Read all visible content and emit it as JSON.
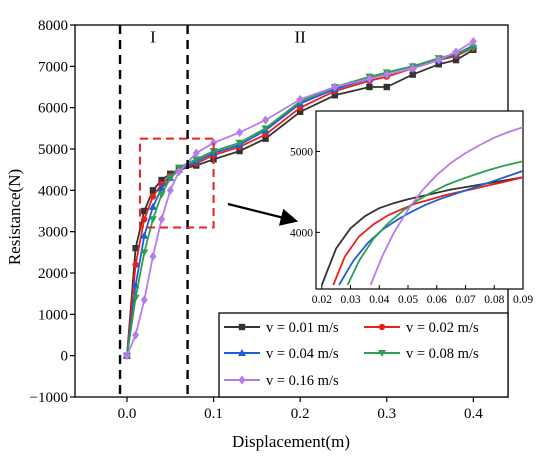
{
  "chart_data": [
    {
      "type": "line",
      "xlabel": "Displacement(m)",
      "ylabel": "Resistance(N)",
      "xlim": [
        -0.06,
        0.44
      ],
      "ylim": [
        -1000,
        8000
      ],
      "x_ticks": [
        0.0,
        0.1,
        0.2,
        0.3,
        0.4
      ],
      "x_tick_labels": [
        "0.0",
        "0.1",
        "0.2",
        "0.3",
        "0.4"
      ],
      "y_ticks": [
        -1000,
        0,
        1000,
        2000,
        3000,
        4000,
        5000,
        6000,
        7000,
        8000
      ],
      "y_tick_labels": [
        "−1000",
        "0",
        "1000",
        "2000",
        "3000",
        "4000",
        "5000",
        "6000",
        "7000",
        "8000"
      ],
      "region_lines_x": [
        -0.008,
        0.07
      ],
      "region_labels": [
        {
          "text": "I",
          "x": 0.03,
          "y": 7700
        },
        {
          "text": "II",
          "x": 0.2,
          "y": 7700
        }
      ],
      "zoom_box": {
        "x": [
          0.015,
          0.1
        ],
        "y": [
          3100,
          5250
        ]
      },
      "legend_position": "bottom-right",
      "series": [
        {
          "name": "v = 0.01 m/s",
          "color": "#333333",
          "marker": "square",
          "x": [
            0.0,
            0.01,
            0.02,
            0.03,
            0.04,
            0.05,
            0.06,
            0.08,
            0.1,
            0.13,
            0.16,
            0.2,
            0.24,
            0.28,
            0.3,
            0.33,
            0.36,
            0.38,
            0.4
          ],
          "y": [
            0,
            2600,
            3500,
            4000,
            4250,
            4400,
            4500,
            4600,
            4750,
            4950,
            5250,
            5900,
            6300,
            6500,
            6500,
            6800,
            7050,
            7150,
            7400
          ]
        },
        {
          "name": "v = 0.02 m/s",
          "color": "#e8211c",
          "marker": "circle",
          "x": [
            0.0,
            0.01,
            0.02,
            0.03,
            0.04,
            0.05,
            0.06,
            0.08,
            0.1,
            0.13,
            0.16,
            0.2,
            0.24,
            0.28,
            0.3,
            0.33,
            0.36,
            0.38,
            0.4
          ],
          "y": [
            0,
            2200,
            3300,
            3850,
            4150,
            4350,
            4500,
            4650,
            4850,
            5050,
            5350,
            6000,
            6400,
            6650,
            6750,
            6950,
            7150,
            7250,
            7450
          ]
        },
        {
          "name": "v = 0.04 m/s",
          "color": "#1e5fd8",
          "marker": "triangle-up",
          "x": [
            0.0,
            0.01,
            0.02,
            0.03,
            0.04,
            0.05,
            0.06,
            0.08,
            0.1,
            0.13,
            0.16,
            0.2,
            0.24,
            0.28,
            0.3,
            0.33,
            0.36,
            0.38,
            0.4
          ],
          "y": [
            0,
            1700,
            2900,
            3600,
            4050,
            4300,
            4500,
            4700,
            4900,
            5100,
            5450,
            6100,
            6450,
            6700,
            6850,
            7000,
            7150,
            7300,
            7500
          ]
        },
        {
          "name": "v = 0.08 m/s",
          "color": "#2e9e4f",
          "marker": "triangle-down",
          "x": [
            0.0,
            0.01,
            0.02,
            0.03,
            0.04,
            0.05,
            0.06,
            0.08,
            0.1,
            0.13,
            0.16,
            0.2,
            0.24,
            0.28,
            0.3,
            0.33,
            0.36,
            0.38,
            0.4
          ],
          "y": [
            0,
            1400,
            2500,
            3300,
            3900,
            4300,
            4550,
            4750,
            4950,
            5150,
            5500,
            6150,
            6500,
            6750,
            6850,
            7000,
            7200,
            7300,
            7450
          ]
        },
        {
          "name": "v = 0.16 m/s",
          "color": "#b77bea",
          "marker": "diamond",
          "x": [
            0.0,
            0.01,
            0.02,
            0.03,
            0.04,
            0.05,
            0.06,
            0.08,
            0.1,
            0.13,
            0.16,
            0.2,
            0.24,
            0.28,
            0.3,
            0.33,
            0.36,
            0.38,
            0.4
          ],
          "y": [
            0,
            500,
            1350,
            2400,
            3300,
            4000,
            4450,
            4900,
            5150,
            5400,
            5700,
            6200,
            6500,
            6700,
            6800,
            6950,
            7150,
            7350,
            7600
          ]
        }
      ]
    },
    {
      "type": "line",
      "xlim": [
        0.018,
        0.09
      ],
      "ylim": [
        3300,
        5500
      ],
      "x_ticks": [
        0.02,
        0.03,
        0.04,
        0.05,
        0.06,
        0.07,
        0.08,
        0.09
      ],
      "x_tick_labels": [
        "0.02",
        "0.03",
        "0.04",
        "0.05",
        "0.06",
        "0.07",
        "0.08",
        "0.09"
      ],
      "y_ticks": [
        4000,
        5000
      ],
      "y_tick_labels": [
        "4000",
        "5000"
      ],
      "series": [
        {
          "color": "#333333",
          "x": [
            0.02,
            0.025,
            0.03,
            0.035,
            0.04,
            0.045,
            0.05,
            0.055,
            0.06,
            0.065,
            0.07,
            0.075,
            0.08,
            0.085,
            0.09
          ],
          "y": [
            3350,
            3800,
            4050,
            4200,
            4300,
            4360,
            4410,
            4450,
            4490,
            4530,
            4560,
            4590,
            4620,
            4650,
            4680
          ]
        },
        {
          "color": "#e8211c",
          "x": [
            0.024,
            0.028,
            0.033,
            0.038,
            0.043,
            0.048,
            0.053,
            0.058,
            0.063,
            0.068,
            0.073,
            0.078,
            0.083,
            0.09
          ],
          "y": [
            3350,
            3700,
            3950,
            4100,
            4210,
            4290,
            4360,
            4410,
            4460,
            4500,
            4540,
            4580,
            4620,
            4680
          ]
        },
        {
          "color": "#1e5fd8",
          "x": [
            0.026,
            0.031,
            0.036,
            0.041,
            0.046,
            0.051,
            0.056,
            0.061,
            0.066,
            0.071,
            0.076,
            0.081,
            0.09
          ],
          "y": [
            3350,
            3650,
            3870,
            4030,
            4150,
            4250,
            4340,
            4410,
            4470,
            4530,
            4590,
            4650,
            4760
          ]
        },
        {
          "color": "#2e9e4f",
          "x": [
            0.029,
            0.033,
            0.038,
            0.043,
            0.048,
            0.053,
            0.058,
            0.063,
            0.068,
            0.073,
            0.078,
            0.083,
            0.09
          ],
          "y": [
            3350,
            3650,
            3920,
            4110,
            4260,
            4390,
            4490,
            4580,
            4650,
            4710,
            4770,
            4820,
            4880
          ]
        },
        {
          "color": "#b77bea",
          "x": [
            0.037,
            0.041,
            0.045,
            0.05,
            0.055,
            0.06,
            0.065,
            0.07,
            0.075,
            0.08,
            0.085,
            0.09
          ],
          "y": [
            3350,
            3700,
            3990,
            4280,
            4520,
            4710,
            4860,
            4980,
            5080,
            5170,
            5240,
            5300
          ]
        }
      ]
    }
  ]
}
